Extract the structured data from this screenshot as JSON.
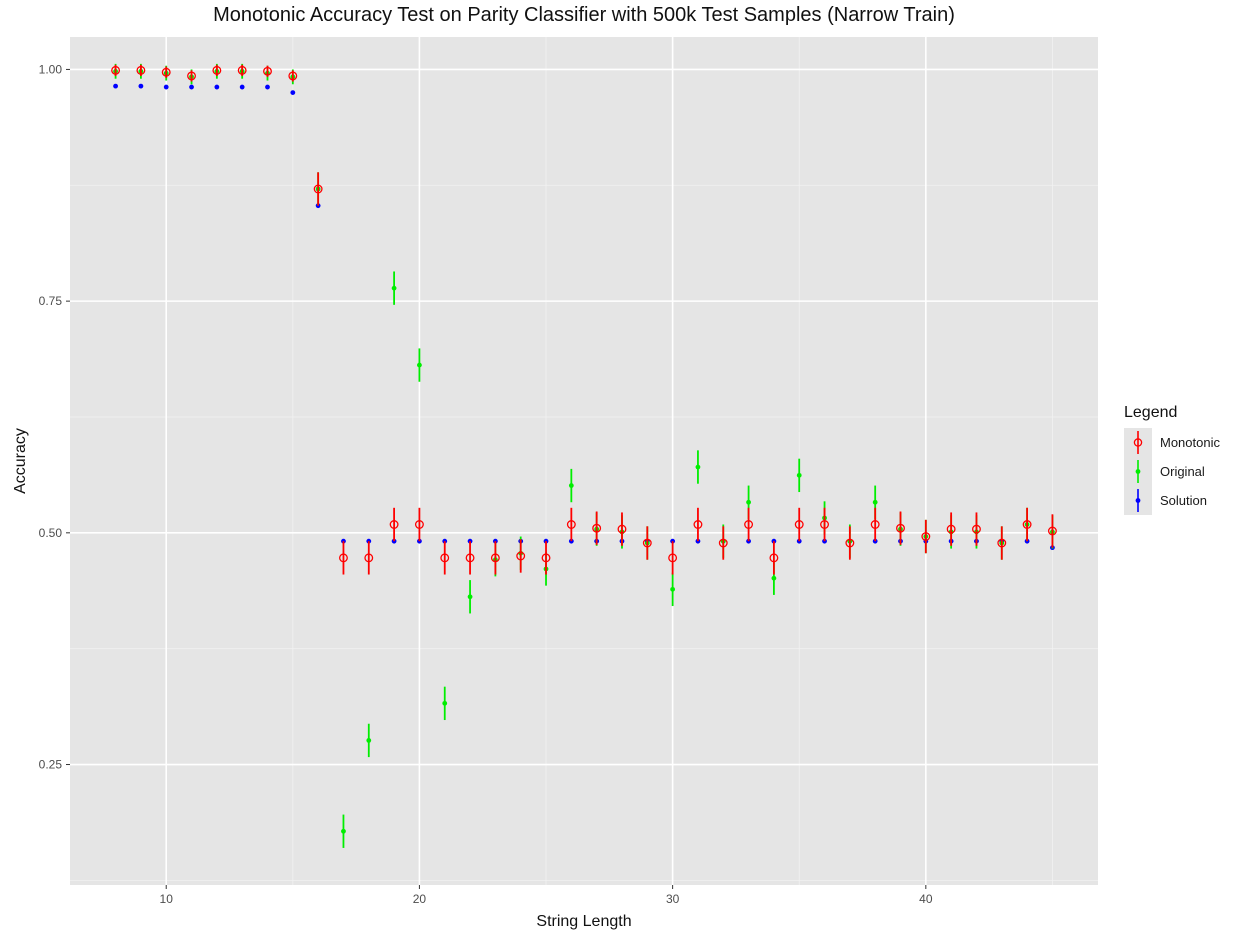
{
  "chart_data": {
    "type": "scatter",
    "title": "Monotonic Accuracy Test on Parity Classifier with 500k Test Samples (Narrow Train)",
    "xlabel": "String Length",
    "ylabel": "Accuracy",
    "xlim": [
      6.2,
      46.8
    ],
    "ylim": [
      0.12,
      1.035
    ],
    "xticks": [
      10,
      20,
      30,
      40
    ],
    "yticks": [
      0.25,
      0.5,
      0.75,
      1.0
    ],
    "ytick_labels": [
      "0.25",
      "0.50",
      "0.75",
      "1.00"
    ],
    "grid": true,
    "legend_title": "Legend",
    "legend_position": "right",
    "series": [
      {
        "name": "Solution",
        "color": "#0000ff",
        "marker": "filled-dot",
        "x": [
          8,
          9,
          10,
          11,
          12,
          13,
          14,
          15,
          16,
          17,
          18,
          19,
          20,
          21,
          22,
          23,
          24,
          25,
          26,
          27,
          28,
          29,
          30,
          31,
          32,
          33,
          34,
          35,
          36,
          37,
          38,
          39,
          40,
          41,
          42,
          43,
          44,
          45
        ],
        "y": [
          0.982,
          0.982,
          0.981,
          0.981,
          0.981,
          0.981,
          0.981,
          0.975,
          0.853,
          0.491,
          0.491,
          0.491,
          0.491,
          0.491,
          0.491,
          0.491,
          0.491,
          0.491,
          0.491,
          0.491,
          0.491,
          0.491,
          0.491,
          0.491,
          0.491,
          0.491,
          0.491,
          0.491,
          0.491,
          0.491,
          0.491,
          0.491,
          0.491,
          0.491,
          0.491,
          0.491,
          0.491,
          0.484
        ],
        "err": [
          0.002,
          0.002,
          0.002,
          0.002,
          0.002,
          0.002,
          0.002,
          0.002,
          0.002,
          0.002,
          0.002,
          0.002,
          0.002,
          0.002,
          0.002,
          0.002,
          0.002,
          0.002,
          0.002,
          0.002,
          0.002,
          0.002,
          0.002,
          0.002,
          0.002,
          0.002,
          0.002,
          0.002,
          0.002,
          0.002,
          0.002,
          0.002,
          0.002,
          0.002,
          0.002,
          0.002,
          0.002,
          0.002
        ]
      },
      {
        "name": "Original",
        "color": "#00ee00",
        "marker": "filled-dot",
        "x": [
          8,
          9,
          10,
          11,
          12,
          13,
          14,
          15,
          16,
          17,
          18,
          19,
          20,
          21,
          22,
          23,
          24,
          25,
          26,
          27,
          28,
          29,
          30,
          31,
          32,
          33,
          34,
          35,
          36,
          37,
          38,
          39,
          40,
          41,
          42,
          43,
          44,
          45
        ],
        "y": [
          0.998,
          0.998,
          0.996,
          0.992,
          0.998,
          0.998,
          0.996,
          0.992,
          0.871,
          0.178,
          0.276,
          0.764,
          0.681,
          0.316,
          0.431,
          0.471,
          0.478,
          0.461,
          0.551,
          0.504,
          0.501,
          0.489,
          0.439,
          0.571,
          0.491,
          0.533,
          0.451,
          0.562,
          0.516,
          0.491,
          0.533,
          0.504,
          0.496,
          0.501,
          0.501,
          0.489,
          0.509,
          0.501
        ],
        "err": [
          0.008,
          0.008,
          0.008,
          0.008,
          0.008,
          0.008,
          0.008,
          0.008,
          0.018,
          0.018,
          0.018,
          0.018,
          0.018,
          0.018,
          0.018,
          0.018,
          0.018,
          0.018,
          0.018,
          0.018,
          0.018,
          0.018,
          0.018,
          0.018,
          0.018,
          0.018,
          0.018,
          0.018,
          0.018,
          0.018,
          0.018,
          0.018,
          0.018,
          0.018,
          0.018,
          0.018,
          0.018,
          0.018
        ]
      },
      {
        "name": "Monotonic",
        "color": "#ff0000",
        "marker": "open-circle",
        "x": [
          8,
          9,
          10,
          11,
          12,
          13,
          14,
          15,
          16,
          17,
          18,
          19,
          20,
          21,
          22,
          23,
          24,
          25,
          26,
          27,
          28,
          29,
          30,
          31,
          32,
          33,
          34,
          35,
          36,
          37,
          38,
          39,
          40,
          41,
          42,
          43,
          44,
          45
        ],
        "y": [
          0.999,
          0.999,
          0.997,
          0.993,
          0.999,
          0.999,
          0.998,
          0.993,
          0.871,
          0.473,
          0.473,
          0.509,
          0.509,
          0.473,
          0.473,
          0.473,
          0.475,
          0.473,
          0.509,
          0.505,
          0.504,
          0.489,
          0.473,
          0.509,
          0.489,
          0.509,
          0.473,
          0.509,
          0.509,
          0.489,
          0.509,
          0.505,
          0.496,
          0.504,
          0.504,
          0.489,
          0.509,
          0.502
        ],
        "err": [
          0.006,
          0.006,
          0.006,
          0.006,
          0.006,
          0.006,
          0.006,
          0.006,
          0.018,
          0.018,
          0.018,
          0.018,
          0.018,
          0.018,
          0.018,
          0.018,
          0.018,
          0.018,
          0.018,
          0.018,
          0.018,
          0.018,
          0.018,
          0.018,
          0.018,
          0.018,
          0.018,
          0.018,
          0.018,
          0.018,
          0.018,
          0.018,
          0.018,
          0.018,
          0.018,
          0.018,
          0.018,
          0.018
        ]
      }
    ]
  }
}
